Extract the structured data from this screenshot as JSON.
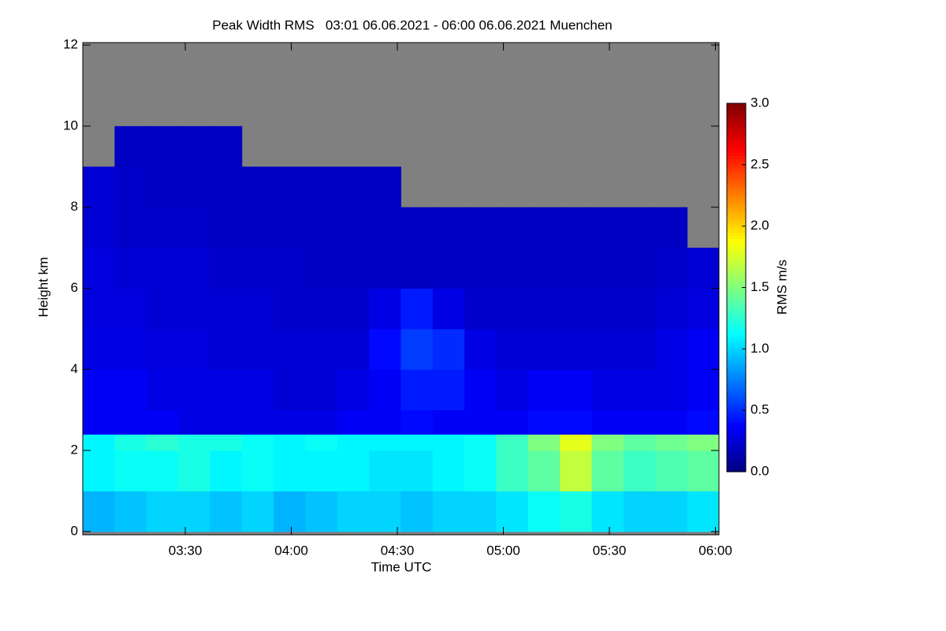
{
  "chart_data": {
    "type": "heatmap",
    "title": "Peak Width RMS   03:01 06.06.2021 - 06:00 06.06.2021 Muenchen",
    "x_label": "Time UTC",
    "y_label": "Height km",
    "colorbar_label": "RMS m/s",
    "colormap": "jet",
    "missing_color": "#808080",
    "xlim": [
      181,
      361
    ],
    "xticks": [
      {
        "value": 210,
        "label": "03:30"
      },
      {
        "value": 240,
        "label": "04:00"
      },
      {
        "value": 270,
        "label": "04:30"
      },
      {
        "value": 300,
        "label": "05:00"
      },
      {
        "value": 330,
        "label": "05:30"
      },
      {
        "value": 360,
        "label": "06:00"
      }
    ],
    "ylim": [
      -0.08,
      12.06
    ],
    "yticks": [
      0,
      2,
      4,
      6,
      8,
      10,
      12
    ],
    "clim": [
      0,
      3
    ],
    "cticks": [
      {
        "value": 0,
        "label": "0.0"
      },
      0.5,
      {
        "value": 1,
        "label": "1.0"
      },
      1.5,
      {
        "value": 2,
        "label": "2.0"
      },
      2.5,
      {
        "value": 3,
        "label": "3.0"
      }
    ],
    "x_bins": [
      181,
      190,
      199,
      208,
      217,
      226,
      235,
      244,
      253,
      262,
      271,
      280,
      289,
      298,
      307,
      316,
      325,
      334,
      343,
      352,
      361
    ],
    "y_bins": [
      0,
      1,
      2,
      2.4,
      3,
      4,
      5,
      6,
      7,
      8,
      9,
      10,
      12.06
    ],
    "values": [
      [
        0.9,
        0.95,
        1.0,
        1.0,
        0.95,
        1.0,
        0.9,
        0.95,
        1.0,
        1.0,
        0.95,
        1.0,
        1.0,
        1.05,
        1.15,
        1.2,
        1.05,
        1.0,
        1.0,
        1.05
      ],
      [
        1.1,
        1.15,
        1.15,
        1.2,
        1.1,
        1.15,
        1.1,
        1.1,
        1.1,
        1.05,
        1.05,
        1.1,
        1.15,
        1.3,
        1.4,
        1.7,
        1.4,
        1.3,
        1.35,
        1.4
      ],
      [
        1.1,
        1.2,
        1.25,
        1.2,
        1.2,
        1.15,
        1.1,
        1.15,
        1.1,
        1.1,
        1.1,
        1.1,
        1.15,
        1.3,
        1.5,
        1.8,
        1.5,
        1.4,
        1.45,
        1.5
      ],
      [
        0.35,
        0.35,
        0.35,
        0.3,
        0.3,
        0.3,
        0.3,
        0.3,
        0.35,
        0.35,
        0.4,
        0.35,
        0.35,
        0.35,
        0.4,
        0.4,
        0.35,
        0.35,
        0.35,
        0.4
      ],
      [
        0.35,
        0.35,
        0.3,
        0.3,
        0.3,
        0.3,
        0.25,
        0.25,
        0.3,
        0.35,
        0.45,
        0.45,
        0.35,
        0.3,
        0.35,
        0.35,
        0.3,
        0.3,
        0.3,
        0.35
      ],
      [
        0.3,
        0.3,
        0.28,
        0.28,
        0.25,
        0.25,
        0.25,
        0.25,
        0.25,
        0.4,
        0.55,
        0.5,
        0.3,
        0.25,
        0.25,
        0.25,
        0.25,
        0.25,
        0.3,
        0.35
      ],
      [
        0.28,
        0.28,
        0.25,
        0.25,
        0.25,
        0.25,
        0.22,
        0.22,
        0.22,
        0.3,
        0.45,
        0.3,
        0.22,
        0.22,
        0.22,
        0.22,
        0.22,
        0.22,
        0.25,
        0.28
      ],
      [
        0.28,
        0.25,
        0.25,
        0.25,
        0.22,
        0.22,
        0.22,
        0.2,
        0.2,
        0.2,
        0.2,
        0.2,
        0.2,
        0.2,
        0.2,
        0.2,
        0.2,
        0.2,
        0.22,
        0.25
      ],
      [
        0.25,
        0.22,
        0.22,
        0.22,
        0.2,
        0.2,
        0.2,
        0.2,
        0.2,
        0.2,
        0.2,
        0.2,
        0.2,
        0.2,
        0.2,
        0.2,
        0.2,
        0.2,
        0.2,
        null
      ],
      [
        0.25,
        0.22,
        0.2,
        0.2,
        0.2,
        0.2,
        0.2,
        0.2,
        0.2,
        0.2,
        null,
        null,
        null,
        null,
        null,
        null,
        null,
        null,
        null,
        null
      ],
      [
        null,
        0.2,
        0.2,
        0.2,
        0.2,
        null,
        null,
        null,
        null,
        null,
        null,
        null,
        null,
        null,
        null,
        null,
        null,
        null,
        null,
        null
      ],
      [
        null,
        null,
        null,
        null,
        null,
        null,
        null,
        null,
        null,
        null,
        null,
        null,
        null,
        null,
        null,
        null,
        null,
        null,
        null,
        null
      ]
    ]
  }
}
